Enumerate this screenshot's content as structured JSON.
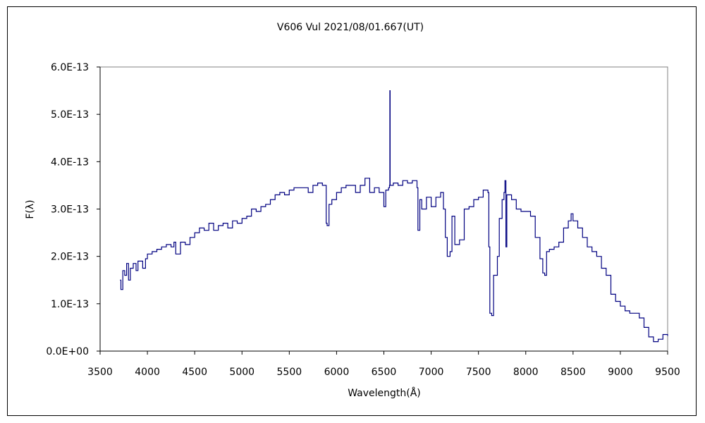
{
  "chart_data": {
    "type": "line",
    "title": "V606 Vul   2021/08/01.667(UT)",
    "xlabel": "Wavelength(Å)",
    "ylabel": "F(λ)",
    "xlim": [
      3500,
      9500
    ],
    "ylim": [
      0,
      6e-13
    ],
    "y_unit_scale": 1e-13,
    "grid": false,
    "legend": "none",
    "line_color": "#000080",
    "xticks": [
      "3500",
      "4000",
      "4500",
      "5000",
      "5500",
      "6000",
      "6500",
      "7000",
      "7500",
      "8000",
      "8500",
      "9000",
      "9500"
    ],
    "xtick_values": [
      3500,
      4000,
      4500,
      5000,
      5500,
      6000,
      6500,
      7000,
      7500,
      8000,
      8500,
      9000,
      9500
    ],
    "yticks": [
      "0.0E+00",
      "1.0E-13",
      "2.0E-13",
      "3.0E-13",
      "4.0E-13",
      "5.0E-13",
      "6.0E-13"
    ],
    "ytick_values": [
      0,
      1,
      2,
      3,
      4,
      5,
      6
    ],
    "series": [
      {
        "name": "V606 Vul",
        "x": [
          3710,
          3720,
          3740,
          3760,
          3780,
          3800,
          3820,
          3850,
          3880,
          3900,
          3950,
          3980,
          4000,
          4050,
          4100,
          4150,
          4200,
          4250,
          4280,
          4300,
          4350,
          4400,
          4450,
          4500,
          4550,
          4600,
          4650,
          4700,
          4750,
          4800,
          4850,
          4900,
          4950,
          5000,
          5050,
          5100,
          5150,
          5200,
          5250,
          5300,
          5350,
          5400,
          5450,
          5500,
          5550,
          5600,
          5650,
          5700,
          5750,
          5800,
          5850,
          5890,
          5900,
          5920,
          5950,
          6000,
          6050,
          6100,
          6150,
          6200,
          6250,
          6300,
          6350,
          6400,
          6450,
          6500,
          6520,
          6550,
          6560,
          6563,
          6566,
          6570,
          6600,
          6650,
          6700,
          6750,
          6800,
          6850,
          6860,
          6880,
          6900,
          6950,
          7000,
          7050,
          7100,
          7130,
          7150,
          7170,
          7200,
          7220,
          7250,
          7300,
          7350,
          7400,
          7450,
          7500,
          7550,
          7600,
          7610,
          7620,
          7640,
          7660,
          7700,
          7720,
          7750,
          7770,
          7780,
          7790,
          7800,
          7850,
          7900,
          7950,
          8000,
          8050,
          8100,
          8150,
          8180,
          8200,
          8220,
          8250,
          8300,
          8350,
          8400,
          8450,
          8480,
          8500,
          8550,
          8600,
          8650,
          8700,
          8750,
          8800,
          8850,
          8900,
          8950,
          9000,
          9050,
          9100,
          9150,
          9200,
          9250,
          9300,
          9350,
          9400,
          9450,
          9500
        ],
        "y": [
          1.5,
          1.3,
          1.7,
          1.6,
          1.85,
          1.5,
          1.75,
          1.85,
          1.7,
          1.9,
          1.75,
          1.95,
          2.05,
          2.1,
          2.15,
          2.2,
          2.25,
          2.2,
          2.3,
          2.05,
          2.3,
          2.25,
          2.4,
          2.5,
          2.6,
          2.55,
          2.7,
          2.55,
          2.65,
          2.7,
          2.6,
          2.75,
          2.7,
          2.8,
          2.85,
          3.0,
          2.95,
          3.05,
          3.1,
          3.2,
          3.3,
          3.35,
          3.3,
          3.4,
          3.45,
          3.45,
          3.45,
          3.35,
          3.5,
          3.55,
          3.5,
          2.7,
          2.65,
          3.1,
          3.2,
          3.35,
          3.45,
          3.5,
          3.5,
          3.35,
          3.5,
          3.65,
          3.35,
          3.45,
          3.35,
          3.05,
          3.4,
          3.45,
          3.5,
          5.5,
          3.5,
          3.5,
          3.55,
          3.5,
          3.6,
          3.55,
          3.6,
          3.45,
          2.55,
          3.2,
          3.0,
          3.25,
          3.05,
          3.25,
          3.35,
          3.0,
          2.4,
          2.0,
          2.1,
          2.85,
          2.25,
          2.35,
          3.0,
          3.05,
          3.2,
          3.25,
          3.4,
          3.35,
          2.2,
          0.8,
          0.75,
          1.6,
          2.0,
          2.8,
          3.2,
          3.35,
          3.6,
          2.2,
          3.3,
          3.2,
          3.0,
          2.95,
          2.95,
          2.85,
          2.4,
          1.95,
          1.65,
          1.6,
          2.1,
          2.15,
          2.2,
          2.3,
          2.6,
          2.75,
          2.9,
          2.75,
          2.6,
          2.4,
          2.2,
          2.1,
          2.0,
          1.75,
          1.6,
          1.2,
          1.05,
          0.95,
          0.85,
          0.8,
          0.8,
          0.7,
          0.5,
          0.3,
          0.2,
          0.25,
          0.35,
          0.32
        ]
      }
    ]
  }
}
